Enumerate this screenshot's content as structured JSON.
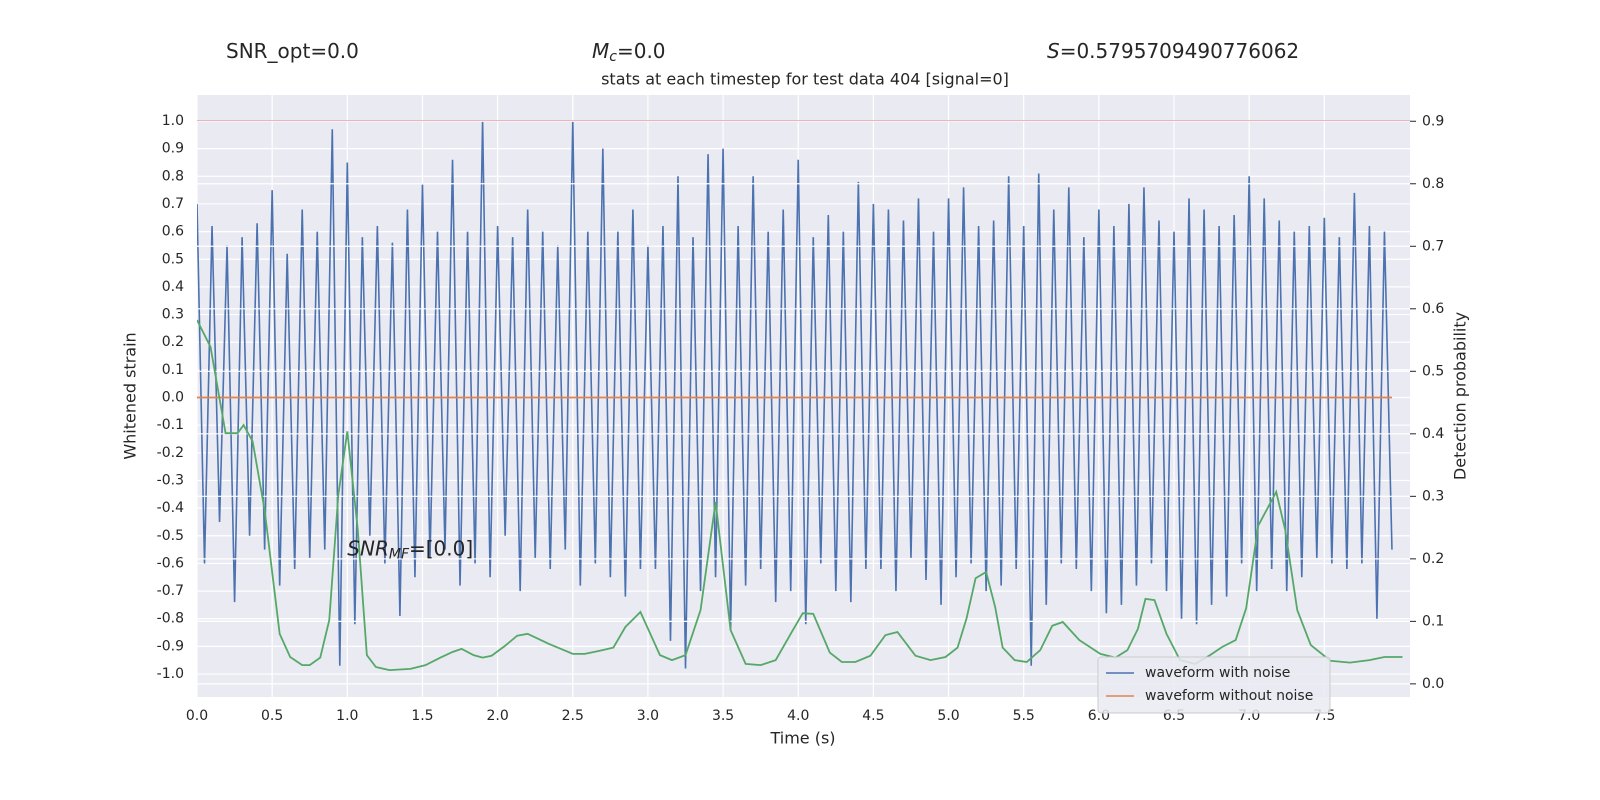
{
  "chart_data": {
    "type": "line",
    "header": [
      {
        "text": "SNR_opt=0.0"
      },
      {
        "symbol": "M",
        "subscript": "c",
        "text": "=0.0"
      },
      {
        "symbol": "S",
        "text": "=0.5795709490776062"
      }
    ],
    "title": "stats at each timestep for test data 404 [signal=0]",
    "annotation": {
      "symbol": "SNR",
      "subscript": "MF",
      "text": "=[0.0]"
    },
    "xlabel": "Time (s)",
    "ylabel": "Whitened strain",
    "y2label": "Detection probability",
    "xlim": [
      0,
      8.07
    ],
    "ylim": [
      -1.083,
      1.094
    ],
    "y2lim": [
      -0.021,
      0.942
    ],
    "xticks": [
      {
        "value": 0,
        "label": "0.0"
      },
      0.5,
      {
        "value": 1,
        "label": "1.0"
      },
      1.5,
      {
        "value": 2,
        "label": "2.0"
      },
      2.5,
      {
        "value": 3,
        "label": "3.0"
      },
      3.5,
      {
        "value": 4,
        "label": "4.0"
      },
      4.5,
      {
        "value": 5,
        "label": "5.0"
      },
      5.5,
      {
        "value": 6,
        "label": "6.0"
      },
      6.5,
      {
        "value": 7,
        "label": "7.0"
      },
      7.5
    ],
    "yticks": [
      {
        "value": 1,
        "label": "1.0"
      },
      0.9,
      0.8,
      0.7,
      0.6,
      0.5,
      0.4,
      0.3,
      0.2,
      0.1,
      {
        "value": 0,
        "label": "0.0"
      },
      -0.1,
      -0.2,
      -0.3,
      -0.4,
      -0.5,
      -0.6,
      -0.7,
      -0.8,
      -0.9,
      {
        "value": -1,
        "label": "-1.0"
      }
    ],
    "y2ticks": [
      0.9,
      0.8,
      0.7,
      0.6,
      0.5,
      0.4,
      0.3,
      0.2,
      0.1,
      {
        "value": 0,
        "label": "0.0"
      }
    ],
    "hlines": [
      {
        "value": 1.0,
        "color": "#c44e52"
      }
    ],
    "grid": true,
    "legend": "lower right",
    "x": [
      0,
      0.05,
      0.1,
      0.15,
      0.2,
      0.25,
      0.3,
      0.35,
      0.4,
      0.45,
      0.5,
      0.55,
      0.6,
      0.65,
      0.7,
      0.75,
      0.8,
      0.85,
      0.9,
      0.95,
      1,
      1.05,
      1.1,
      1.15,
      1.2,
      1.25,
      1.3,
      1.35,
      1.4,
      1.45,
      1.5,
      1.55,
      1.6,
      1.65,
      1.7,
      1.75,
      1.8,
      1.85,
      1.9,
      1.95,
      2,
      2.05,
      2.1,
      2.15,
      2.2,
      2.25,
      2.3,
      2.35,
      2.4,
      2.45,
      2.5,
      2.55,
      2.6,
      2.65,
      2.7,
      2.75,
      2.8,
      2.85,
      2.9,
      2.95,
      3,
      3.05,
      3.1,
      3.15,
      3.2,
      3.25,
      3.3,
      3.35,
      3.4,
      3.45,
      3.5,
      3.55,
      3.6,
      3.65,
      3.7,
      3.75,
      3.8,
      3.85,
      3.9,
      3.95,
      4,
      4.05,
      4.1,
      4.15,
      4.2,
      4.25,
      4.3,
      4.35,
      4.4,
      4.45,
      4.5,
      4.55,
      4.6,
      4.65,
      4.7,
      4.75,
      4.8,
      4.85,
      4.9,
      4.95,
      5,
      5.05,
      5.1,
      5.15,
      5.2,
      5.25,
      5.3,
      5.35,
      5.4,
      5.45,
      5.5,
      5.55,
      5.6,
      5.65,
      5.7,
      5.75,
      5.8,
      5.85,
      5.9,
      5.95,
      6,
      6.05,
      6.1,
      6.15,
      6.2,
      6.25,
      6.3,
      6.35,
      6.4,
      6.45,
      6.5,
      6.55,
      6.6,
      6.65,
      6.7,
      6.75,
      6.8,
      6.85,
      6.9,
      6.95,
      7,
      7.05,
      7.1,
      7.15,
      7.2,
      7.25,
      7.3,
      7.35,
      7.4,
      7.45,
      7.5,
      7.55,
      7.6,
      7.65,
      7.7,
      7.75,
      7.8,
      7.85,
      7.9,
      7.95
    ],
    "series": [
      {
        "name": "waveform with noise",
        "color": "#4c72b0",
        "values": [
          0.7,
          -0.6,
          0.62,
          -0.45,
          0.55,
          -0.74,
          0.58,
          -0.5,
          0.63,
          -0.55,
          0.75,
          -0.68,
          0.52,
          -0.62,
          0.68,
          -0.58,
          0.6,
          -0.55,
          0.97,
          -0.97,
          0.85,
          -0.82,
          0.58,
          -0.5,
          0.62,
          -0.6,
          0.56,
          -0.79,
          0.68,
          -0.65,
          0.77,
          -0.58,
          0.6,
          -0.55,
          0.86,
          -0.68,
          0.6,
          -0.6,
          1.0,
          -0.65,
          0.62,
          -0.5,
          0.58,
          -0.7,
          0.68,
          -0.58,
          0.6,
          -0.62,
          0.55,
          -0.55,
          1.0,
          -0.68,
          0.6,
          -0.6,
          0.9,
          -0.65,
          0.6,
          -0.72,
          0.68,
          -0.62,
          0.55,
          -0.62,
          0.62,
          -0.88,
          0.8,
          -0.98,
          0.58,
          -0.7,
          0.88,
          -0.65,
          0.9,
          -0.84,
          0.62,
          -0.68,
          0.8,
          -0.62,
          0.6,
          -0.74,
          0.68,
          -0.7,
          0.86,
          -0.82,
          0.58,
          -0.6,
          0.66,
          -0.7,
          0.6,
          -0.74,
          0.78,
          -0.62,
          0.7,
          -0.62,
          0.68,
          -0.7,
          0.64,
          -0.58,
          0.72,
          -0.66,
          0.6,
          -0.75,
          0.72,
          -0.65,
          0.76,
          -0.6,
          0.62,
          -0.7,
          0.64,
          -0.68,
          0.8,
          -0.62,
          0.62,
          -0.97,
          0.81,
          -0.75,
          0.68,
          -0.6,
          0.76,
          -0.62,
          0.58,
          -0.7,
          0.68,
          -0.78,
          0.62,
          -0.75,
          0.7,
          -0.68,
          0.76,
          -0.6,
          0.64,
          -0.7,
          0.6,
          -0.8,
          0.72,
          -0.82,
          0.68,
          -0.75,
          0.62,
          -0.72,
          0.66,
          -0.6,
          0.8,
          -0.7,
          0.72,
          -0.62,
          0.64,
          -0.7,
          0.6,
          -0.65,
          0.62,
          -0.58,
          0.65,
          -0.6,
          0.58,
          -0.62,
          0.74,
          -0.6,
          0.62,
          -0.8,
          0.6,
          -0.55
        ]
      },
      {
        "name": "waveform without noise",
        "color": "#dd8452",
        "values": [
          0,
          0,
          0,
          0,
          0,
          0,
          0,
          0,
          0,
          0,
          0,
          0,
          0,
          0,
          0,
          0,
          0,
          0,
          0,
          0,
          0,
          0,
          0,
          0,
          0,
          0,
          0,
          0,
          0,
          0,
          0,
          0,
          0,
          0,
          0,
          0,
          0,
          0,
          0,
          0,
          0,
          0,
          0,
          0,
          0,
          0,
          0,
          0,
          0,
          0,
          0,
          0,
          0,
          0,
          0,
          0,
          0,
          0,
          0,
          0,
          0,
          0,
          0,
          0,
          0,
          0,
          0,
          0,
          0,
          0,
          0,
          0,
          0,
          0,
          0,
          0,
          0,
          0,
          0,
          0,
          0,
          0,
          0,
          0,
          0,
          0,
          0,
          0,
          0,
          0,
          0,
          0,
          0,
          0,
          0,
          0,
          0,
          0,
          0,
          0,
          0,
          0,
          0,
          0,
          0,
          0,
          0,
          0,
          0,
          0,
          0,
          0,
          0,
          0,
          0,
          0,
          0,
          0,
          0,
          0,
          0,
          0,
          0,
          0,
          0,
          0,
          0,
          0,
          0,
          0,
          0,
          0,
          0,
          0,
          0,
          0,
          0,
          0,
          0,
          0,
          0,
          0,
          0,
          0,
          0,
          0,
          0,
          0,
          0,
          0,
          0,
          0,
          0,
          0,
          0,
          0,
          0,
          0,
          0,
          0
        ]
      },
      {
        "color": "#55a868",
        "axis": "y2",
        "x": [
          0,
          0.09,
          0.19,
          0.27,
          0.31,
          0.37,
          0.45,
          0.55,
          0.62,
          0.7,
          0.75,
          0.82,
          0.88,
          0.94,
          1.0,
          1.07,
          1.13,
          1.19,
          1.28,
          1.42,
          1.52,
          1.62,
          1.7,
          1.76,
          1.84,
          1.9,
          1.96,
          2.05,
          2.13,
          2.2,
          2.34,
          2.5,
          2.58,
          2.68,
          2.77,
          2.85,
          2.95,
          3.08,
          3.16,
          3.25,
          3.35,
          3.45,
          3.55,
          3.65,
          3.75,
          3.85,
          3.95,
          4.03,
          4.1,
          4.21,
          4.29,
          4.38,
          4.48,
          4.58,
          4.66,
          4.78,
          4.88,
          4.98,
          5.06,
          5.12,
          5.18,
          5.25,
          5.31,
          5.36,
          5.44,
          5.52,
          5.61,
          5.69,
          5.76,
          5.87,
          6.01,
          6.11,
          6.19,
          6.26,
          6.31,
          6.37,
          6.45,
          6.54,
          6.64,
          6.74,
          6.82,
          6.91,
          6.98,
          7.06,
          7.18,
          7.24,
          7.32,
          7.41,
          7.54,
          7.67,
          7.8,
          7.9,
          8.02
        ],
        "values": [
          0.582,
          0.539,
          0.401,
          0.401,
          0.414,
          0.388,
          0.278,
          0.08,
          0.043,
          0.03,
          0.03,
          0.042,
          0.102,
          0.302,
          0.404,
          0.246,
          0.046,
          0.027,
          0.022,
          0.024,
          0.03,
          0.042,
          0.051,
          0.056,
          0.046,
          0.042,
          0.045,
          0.061,
          0.077,
          0.08,
          0.064,
          0.048,
          0.048,
          0.053,
          0.058,
          0.091,
          0.115,
          0.046,
          0.038,
          0.046,
          0.118,
          0.291,
          0.086,
          0.032,
          0.03,
          0.038,
          0.08,
          0.113,
          0.112,
          0.05,
          0.035,
          0.035,
          0.045,
          0.078,
          0.083,
          0.045,
          0.038,
          0.043,
          0.058,
          0.105,
          0.169,
          0.179,
          0.123,
          0.058,
          0.038,
          0.035,
          0.054,
          0.093,
          0.099,
          0.07,
          0.048,
          0.042,
          0.054,
          0.088,
          0.136,
          0.134,
          0.08,
          0.038,
          0.032,
          0.046,
          0.059,
          0.07,
          0.121,
          0.253,
          0.307,
          0.246,
          0.118,
          0.062,
          0.037,
          0.034,
          0.038,
          0.043,
          0.043
        ]
      }
    ]
  }
}
